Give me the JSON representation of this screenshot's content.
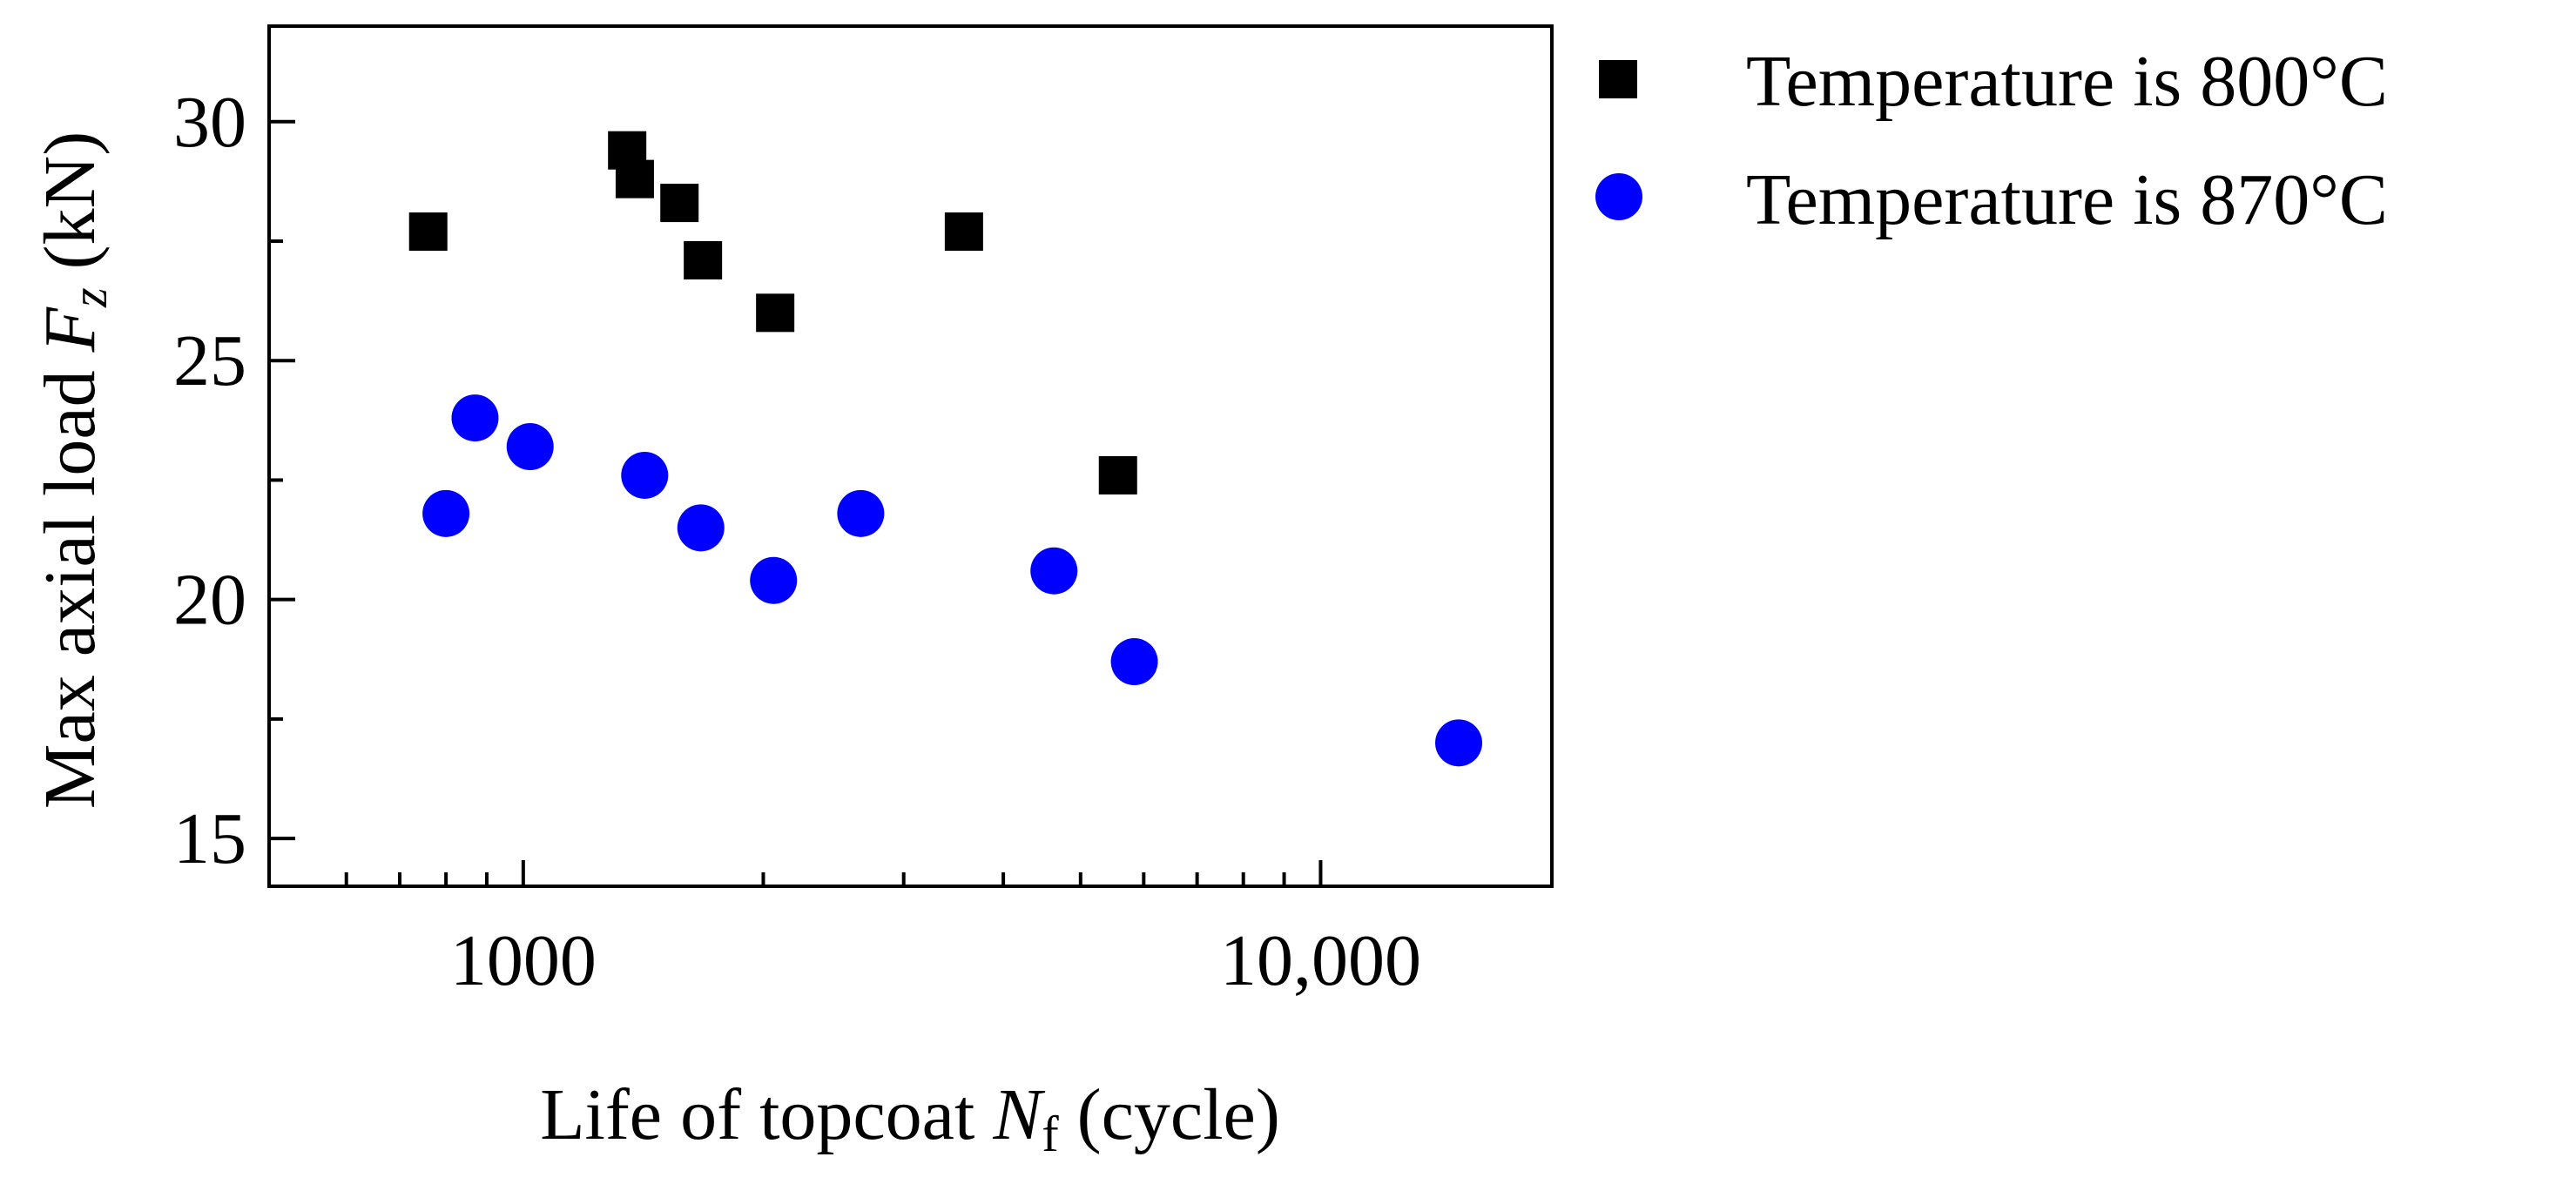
{
  "chart_data": {
    "type": "scatter",
    "title": "",
    "xlabel": {
      "main": "Life of topcoat ",
      "symbol": "N",
      "subscript": "f",
      "unit": " (cycle)"
    },
    "ylabel": {
      "main": "Max axial load ",
      "symbol": "F",
      "subscript": "z",
      "unit": " (kN)"
    },
    "xscale": "log",
    "xlim": [
      480,
      19500
    ],
    "ylim": [
      14,
      32
    ],
    "x_tick_labels": [
      {
        "value": 1000,
        "label": "1000"
      },
      {
        "value": 10000,
        "label": "10,000"
      }
    ],
    "x_minor_ticks": [
      600,
      700,
      800,
      900,
      2000,
      3000,
      4000,
      5000,
      6000,
      7000,
      8000,
      9000
    ],
    "y_tick_labels": [
      {
        "value": 15,
        "label": "15"
      },
      {
        "value": 20,
        "label": "20"
      },
      {
        "value": 25,
        "label": "25"
      },
      {
        "value": 30,
        "label": "30"
      }
    ],
    "y_minor_ticks": [
      17.5,
      22.5,
      27.5
    ],
    "legend_position": "outside-top-right",
    "series": [
      {
        "name": "Temperature is 800°C",
        "marker": "square",
        "color": "#000000",
        "points": [
          {
            "x": 760,
            "y": 27.7
          },
          {
            "x": 1350,
            "y": 29.4
          },
          {
            "x": 1380,
            "y": 28.8
          },
          {
            "x": 1570,
            "y": 28.3
          },
          {
            "x": 1680,
            "y": 27.1
          },
          {
            "x": 2070,
            "y": 26.0
          },
          {
            "x": 3570,
            "y": 27.7
          },
          {
            "x": 5570,
            "y": 22.6
          }
        ]
      },
      {
        "name": "Temperature is 870°C",
        "marker": "circle",
        "color": "#0000ff",
        "points": [
          {
            "x": 800,
            "y": 21.8
          },
          {
            "x": 870,
            "y": 23.8
          },
          {
            "x": 1020,
            "y": 23.2
          },
          {
            "x": 1420,
            "y": 22.6
          },
          {
            "x": 1670,
            "y": 21.5
          },
          {
            "x": 2060,
            "y": 20.4
          },
          {
            "x": 2650,
            "y": 21.8
          },
          {
            "x": 4630,
            "y": 20.6
          },
          {
            "x": 5840,
            "y": 18.7
          },
          {
            "x": 14900,
            "y": 17.0
          }
        ]
      }
    ]
  }
}
